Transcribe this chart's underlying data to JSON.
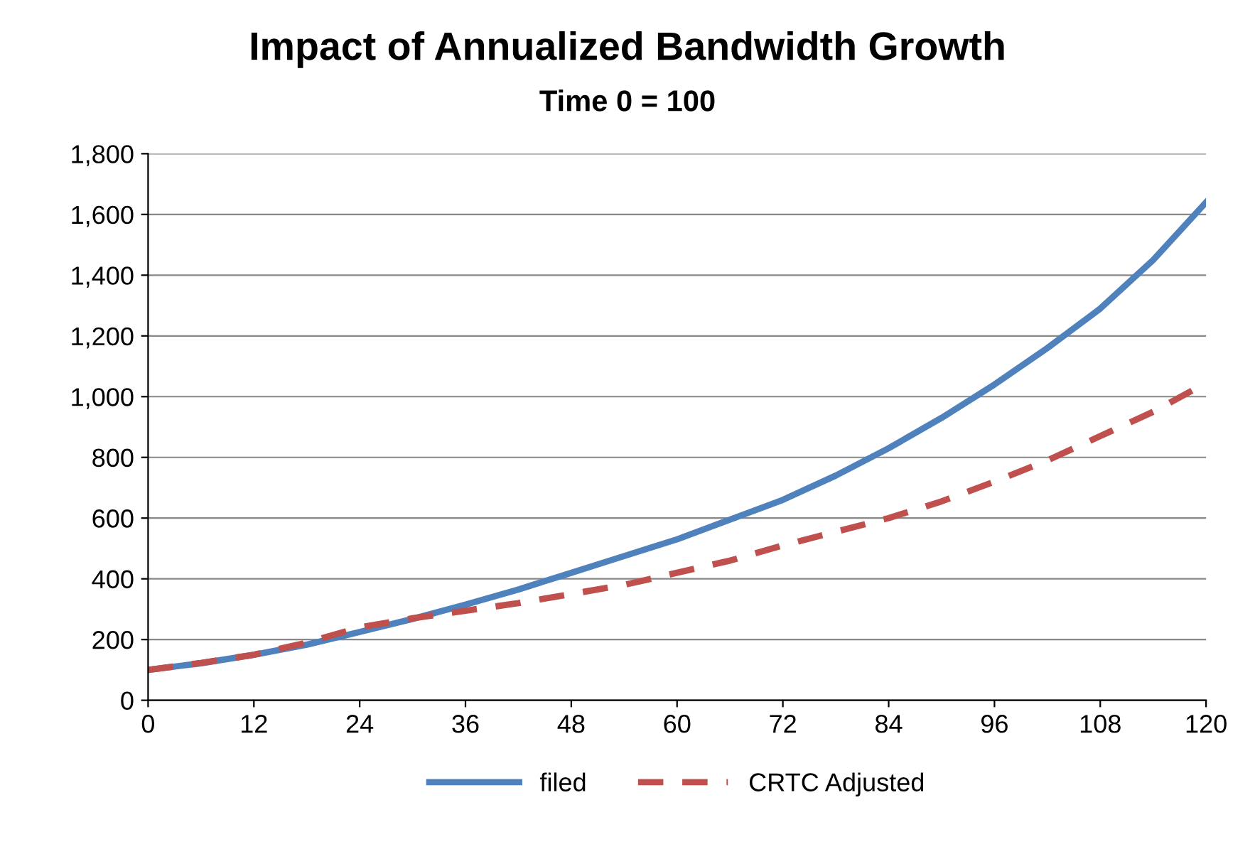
{
  "chart_data": {
    "type": "line",
    "title": "Impact of Annualized Bandwidth Growth",
    "subtitle": "Time 0 = 100",
    "x": [
      0,
      6,
      12,
      18,
      24,
      30,
      36,
      42,
      48,
      54,
      60,
      66,
      72,
      78,
      84,
      90,
      96,
      102,
      108,
      114,
      120
    ],
    "series": [
      {
        "name": "filed",
        "color": "#4f81bd",
        "line_style": "solid",
        "values": [
          100,
          122,
          150,
          183,
          225,
          268,
          315,
          365,
          420,
          475,
          530,
          595,
          660,
          740,
          830,
          930,
          1040,
          1160,
          1290,
          1450,
          1640
        ]
      },
      {
        "name": "CRTC Adjusted",
        "color": "#c0504d",
        "line_style": "dashed",
        "values": [
          100,
          123,
          150,
          190,
          240,
          270,
          295,
          320,
          350,
          380,
          420,
          460,
          510,
          555,
          600,
          655,
          720,
          790,
          870,
          950,
          1045
        ]
      }
    ],
    "xlim": [
      0,
      120
    ],
    "xticks": [
      0,
      12,
      24,
      36,
      48,
      60,
      72,
      84,
      96,
      108,
      120
    ],
    "ylim": [
      0,
      1800
    ],
    "yticks": [
      {
        "value": 0,
        "label": "0"
      },
      {
        "value": 200,
        "label": "200"
      },
      {
        "value": 400,
        "label": "400"
      },
      {
        "value": 600,
        "label": "600"
      },
      {
        "value": 800,
        "label": "800"
      },
      {
        "value": 1000,
        "label": "1,000"
      },
      {
        "value": 1200,
        "label": "1,200"
      },
      {
        "value": 1400,
        "label": "1,400"
      },
      {
        "value": 1600,
        "label": "1,600"
      },
      {
        "value": 1800,
        "label": "1,800"
      }
    ],
    "grid": "y",
    "legend": "bottom",
    "marker": "none"
  }
}
